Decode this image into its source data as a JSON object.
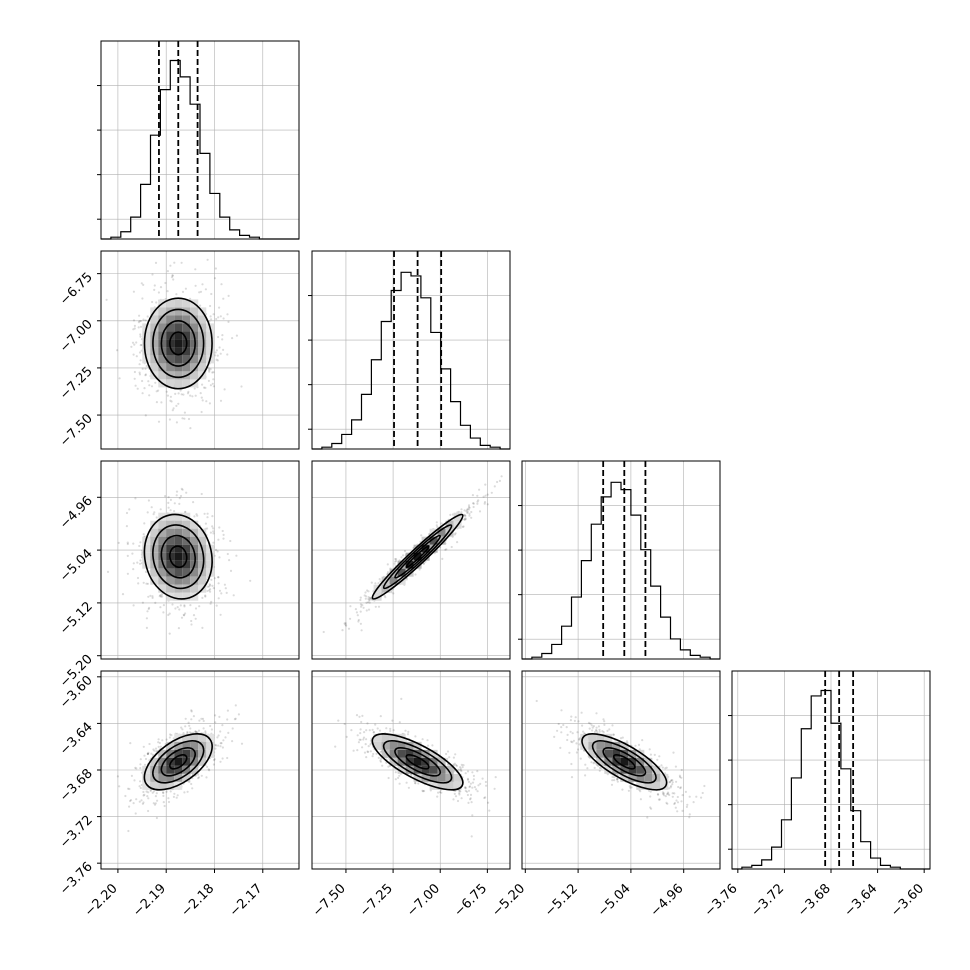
{
  "chart_data": {
    "type": "corner",
    "grid": true,
    "parameters": [
      {
        "range": [
          -2.2035,
          -2.1625
        ],
        "ticks": [
          -2.2,
          -2.19,
          -2.18,
          -2.17
        ],
        "tick_labels": [
          "−2.20",
          "−2.19",
          "−2.18",
          "−2.17"
        ],
        "median": -2.1875,
        "sigma": 0.0035,
        "quantiles": [
          -2.1915,
          -2.1875,
          -2.1835
        ],
        "hist_bins": [
          0,
          0.01,
          0.04,
          0.12,
          0.3,
          0.57,
          0.82,
          0.98,
          0.89,
          0.74,
          0.47,
          0.25,
          0.12,
          0.05,
          0.02,
          0.01,
          0,
          0,
          0,
          0
        ]
      },
      {
        "range": [
          -7.68,
          -6.63
        ],
        "ticks": [
          -7.5,
          -7.25,
          -7.0,
          -6.75
        ],
        "tick_labels": [
          "−7.50",
          "−7.25",
          "−7.00",
          "−6.75"
        ],
        "median": -7.12,
        "sigma": 0.12,
        "quantiles": [
          -7.245,
          -7.12,
          -6.995
        ],
        "hist_bins": [
          0,
          0.01,
          0.03,
          0.08,
          0.16,
          0.3,
          0.49,
          0.7,
          0.87,
          0.97,
          0.95,
          0.83,
          0.64,
          0.44,
          0.26,
          0.13,
          0.06,
          0.02,
          0.01,
          0
        ]
      },
      {
        "range": [
          -5.205,
          -4.905
        ],
        "ticks": [
          -5.2,
          -5.12,
          -5.04,
          -4.96
        ],
        "tick_labels": [
          "−5.20",
          "−5.12",
          "−5.04",
          "−4.96"
        ],
        "median": -5.05,
        "sigma": 0.032,
        "quantiles": [
          -5.082,
          -5.05,
          -5.018
        ],
        "hist_bins": [
          0,
          0.01,
          0.03,
          0.08,
          0.18,
          0.34,
          0.54,
          0.74,
          0.89,
          0.97,
          0.93,
          0.79,
          0.6,
          0.4,
          0.23,
          0.11,
          0.05,
          0.02,
          0.01,
          0
        ]
      },
      {
        "range": [
          -3.765,
          -3.595
        ],
        "ticks": [
          -3.76,
          -3.72,
          -3.68,
          -3.64,
          -3.6
        ],
        "tick_labels": [
          "−3.76",
          "−3.72",
          "−3.68",
          "−3.64",
          "−3.60"
        ],
        "median": -3.673,
        "sigma": 0.012,
        "quantiles": [
          -3.685,
          -3.673,
          -3.661
        ],
        "hist_bins": [
          0,
          0.01,
          0.02,
          0.05,
          0.12,
          0.27,
          0.5,
          0.77,
          0.95,
          0.98,
          0.8,
          0.55,
          0.32,
          0.15,
          0.06,
          0.02,
          0.01,
          0,
          0,
          0
        ]
      }
    ],
    "correlations": [
      {
        "row": 1,
        "col": 0,
        "rho": 0.0
      },
      {
        "row": 2,
        "col": 0,
        "rho": -0.1
      },
      {
        "row": 2,
        "col": 1,
        "rho": 0.97
      },
      {
        "row": 3,
        "col": 0,
        "rho": 0.55
      },
      {
        "row": 3,
        "col": 1,
        "rho": -0.75
      },
      {
        "row": 3,
        "col": 2,
        "rho": -0.75
      }
    ],
    "contour_levels": [
      0.5,
      1.0,
      1.5,
      2.0
    ]
  }
}
